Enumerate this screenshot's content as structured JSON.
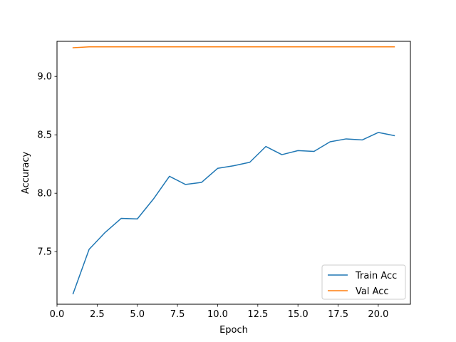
{
  "chart_data": {
    "type": "line",
    "title": "",
    "xlabel": "Epoch",
    "ylabel": "Accuracy",
    "xlim": [
      0,
      22
    ],
    "ylim": [
      7.05,
      9.3
    ],
    "xticks": [
      0.0,
      2.5,
      5.0,
      7.5,
      10.0,
      12.5,
      15.0,
      17.5,
      20.0
    ],
    "xtick_labels": [
      "0.0",
      "2.5",
      "5.0",
      "7.5",
      "10.0",
      "12.5",
      "15.0",
      "17.5",
      "20.0"
    ],
    "yticks": [
      7.5,
      8.0,
      8.5,
      9.0
    ],
    "ytick_labels": [
      "7.5",
      "8.0",
      "8.5",
      "9.0"
    ],
    "grid": false,
    "legend_position": "lower-right",
    "x": [
      1,
      2,
      3,
      4,
      5,
      6,
      7,
      8,
      9,
      10,
      11,
      12,
      13,
      14,
      15,
      16,
      17,
      18,
      19,
      20,
      21
    ],
    "series": [
      {
        "name": "Train Acc",
        "color": "#1f77b4",
        "values": [
          7.14,
          7.52,
          7.665,
          7.785,
          7.78,
          7.95,
          8.145,
          8.075,
          8.093,
          8.213,
          8.235,
          8.265,
          8.4,
          8.33,
          8.365,
          8.358,
          8.44,
          8.465,
          8.456,
          8.52,
          8.493
        ]
      },
      {
        "name": "Val Acc",
        "color": "#ff7f0e",
        "values": [
          9.245,
          9.253,
          9.253,
          9.253,
          9.253,
          9.253,
          9.253,
          9.253,
          9.253,
          9.253,
          9.253,
          9.253,
          9.253,
          9.253,
          9.253,
          9.253,
          9.253,
          9.253,
          9.253,
          9.253,
          9.253
        ]
      }
    ]
  }
}
